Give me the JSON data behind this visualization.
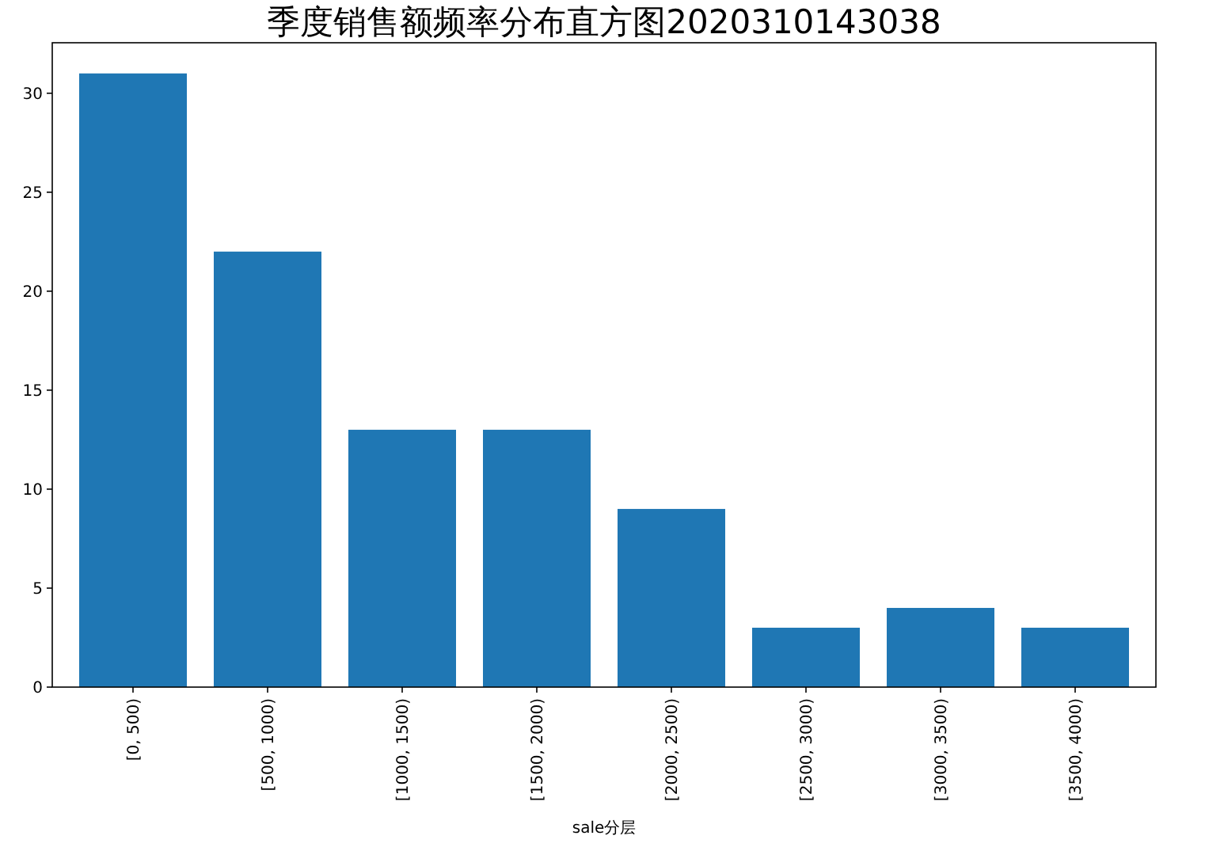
{
  "chart_data": {
    "type": "bar",
    "title": "季度销售额频率分布直方图2020310143038",
    "xlabel": "sale分层",
    "categories": [
      "[0, 500)",
      "[500, 1000)",
      "[1000, 1500)",
      "[1500, 2000)",
      "[2000, 2500)",
      "[2500, 3000)",
      "[3000, 3500)",
      "[3500, 4000)"
    ],
    "values": [
      31,
      22,
      13,
      13,
      9,
      3,
      4,
      3
    ],
    "color": "#1f77b4",
    "ylim": [
      0,
      32.55
    ],
    "yticks": [
      0,
      5,
      10,
      15,
      20,
      25,
      30
    ]
  }
}
